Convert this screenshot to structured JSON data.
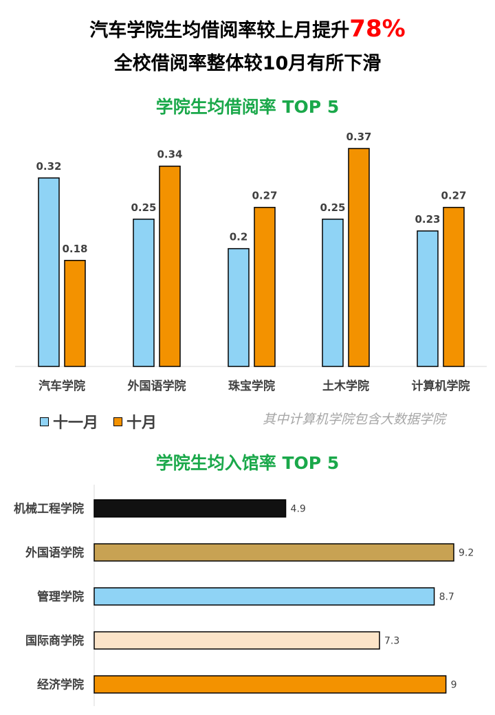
{
  "header": {
    "line1_prefix": "汽车学院生均借阅率较上月提升",
    "line1_highlight": "78%",
    "line2": "全校借阅率整体较10月有所下滑",
    "highlight_color": "#ff0000"
  },
  "chart_data": [
    {
      "type": "bar",
      "title": "学院生均借阅率 TOP 5",
      "title_color": "#1aa84a",
      "categories": [
        "汽车学院",
        "外国语学院",
        "珠宝学院",
        "土木学院",
        "计算机学院"
      ],
      "series": [
        {
          "name": "十一月",
          "values": [
            0.32,
            0.25,
            0.2,
            0.25,
            0.23
          ],
          "color": "#8fd3f5"
        },
        {
          "name": "十月",
          "values": [
            0.18,
            0.34,
            0.27,
            0.37,
            0.27
          ],
          "color": "#f39200"
        }
      ],
      "ylim": [
        0,
        0.37
      ],
      "legend_position": "bottom-left",
      "grid": false,
      "note": "其中计算机学院包含大数据学院"
    },
    {
      "type": "bar",
      "orientation": "horizontal",
      "title": "学院生均入馆率 TOP 5",
      "title_color": "#1aa84a",
      "categories": [
        "机械工程学院",
        "外国语学院",
        "管理学院",
        "国际商学院",
        "经济学院"
      ],
      "values": [
        4.9,
        9.2,
        8.7,
        7.3,
        9
      ],
      "colors": [
        "#111111",
        "#c8a253",
        "#8fd3f5",
        "#fce4c8",
        "#f39200"
      ],
      "xlim": [
        0,
        9.2
      ],
      "grid": false
    }
  ]
}
